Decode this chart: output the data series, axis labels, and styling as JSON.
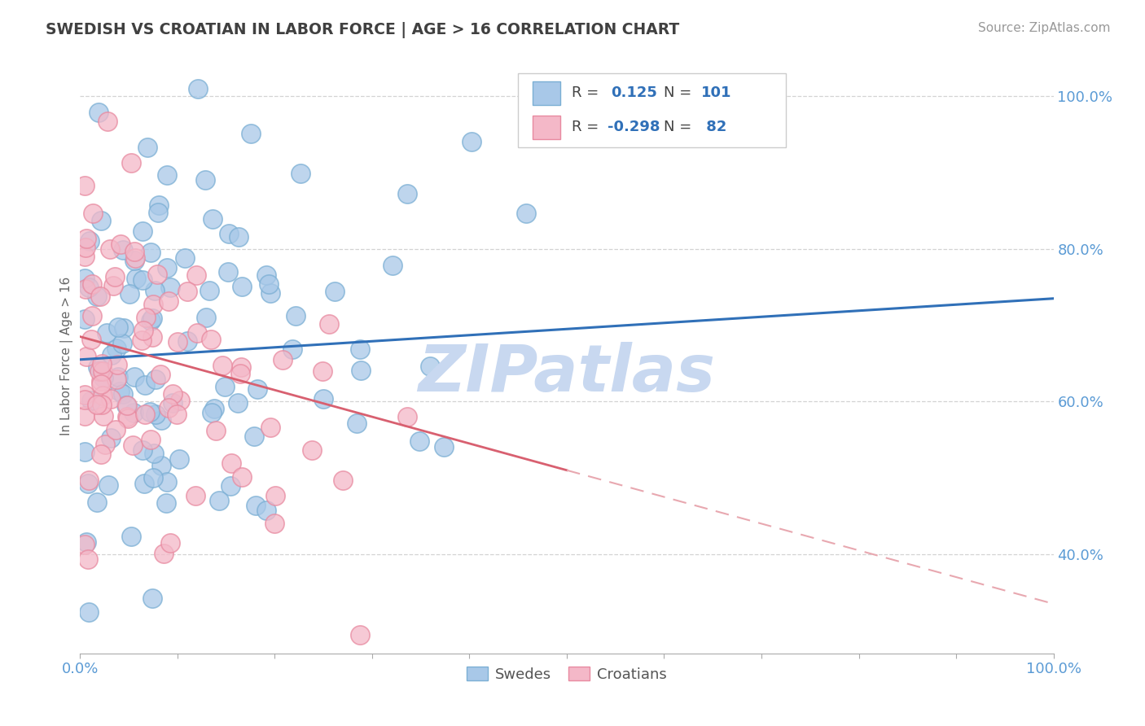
{
  "title": "SWEDISH VS CROATIAN IN LABOR FORCE | AGE > 16 CORRELATION CHART",
  "source": "Source: ZipAtlas.com",
  "ylabel": "In Labor Force | Age > 16",
  "xlim": [
    0.0,
    1.0
  ],
  "ylim": [
    0.27,
    1.05
  ],
  "yticks": [
    0.4,
    0.6,
    0.8,
    1.0
  ],
  "ytick_labels": [
    "40.0%",
    "60.0%",
    "80.0%",
    "100.0%"
  ],
  "swedish_R": 0.125,
  "swedish_N": 101,
  "croatian_R": -0.298,
  "croatian_N": 82,
  "blue_scatter": "#a8c8e8",
  "blue_edge": "#7bafd4",
  "pink_scatter": "#f4b8c8",
  "pink_edge": "#e88aa0",
  "trend_blue": "#3070b8",
  "trend_pink": "#d86070",
  "trend_pink_dash": "#e8a8b0",
  "axis_color": "#5b9bd5",
  "grid_color": "#c8c8c8",
  "title_color": "#404040",
  "watermark_color": "#c8d8f0",
  "legend_value_color": "#3070b8",
  "legend_text_color": "#444444",
  "background": "#ffffff",
  "blue_trend_start_y": 0.655,
  "blue_trend_end_y": 0.735,
  "pink_trend_start_y": 0.685,
  "pink_trend_end_y": 0.335
}
